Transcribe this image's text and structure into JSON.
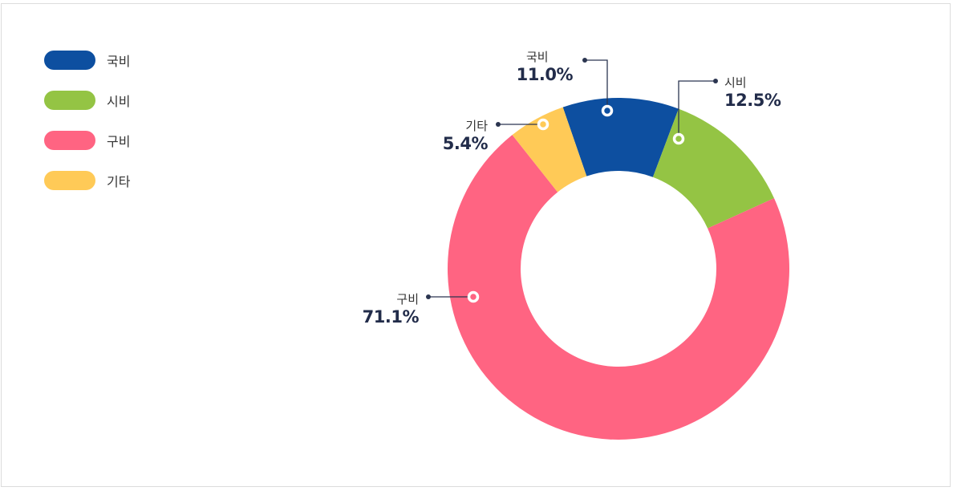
{
  "chart_data": {
    "type": "pie",
    "subtype": "donut",
    "title": "",
    "legend_placement": "top-left",
    "categories": [
      "국비",
      "시비",
      "구비",
      "기타"
    ],
    "values": [
      11.0,
      12.5,
      71.1,
      5.4
    ],
    "value_labels": [
      "11.0%",
      "12.5%",
      "71.1%",
      "5.4%"
    ],
    "colors": [
      "#0d4fa0",
      "#94c444",
      "#ff6482",
      "#ffca57"
    ]
  }
}
